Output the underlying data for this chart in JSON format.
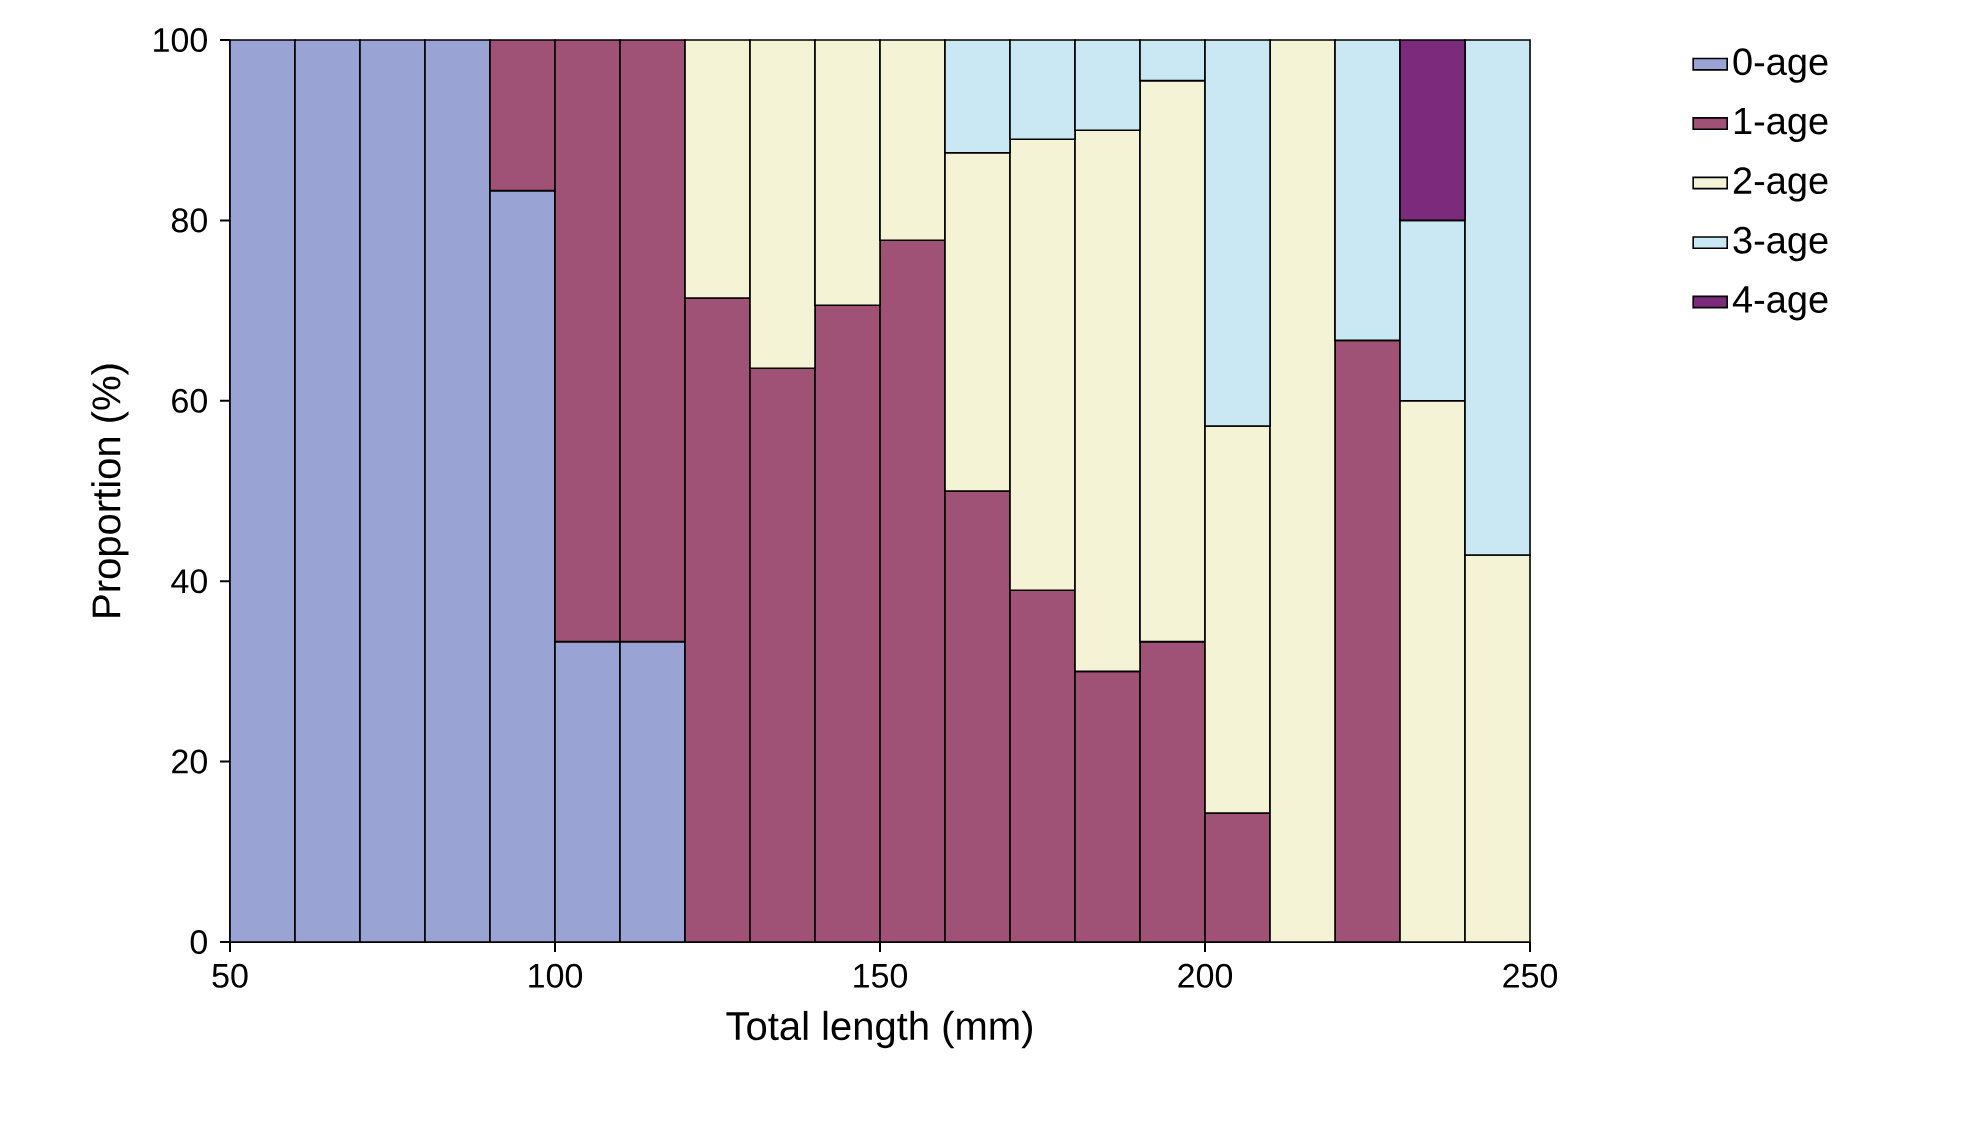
{
  "chart_data": {
    "type": "bar",
    "stacked": true,
    "xlabel": "Total length (mm)",
    "ylabel": "Proportion (%)",
    "x": [
      55,
      65,
      75,
      85,
      95,
      105,
      115,
      125,
      135,
      145,
      155,
      165,
      175,
      185,
      195,
      205,
      215,
      225,
      235,
      245
    ],
    "series": [
      {
        "name": "0-age",
        "color": "#9aa4d4",
        "values": [
          100,
          100,
          100,
          100,
          83.3,
          33.3,
          33.3,
          null,
          null,
          null,
          null,
          null,
          null,
          null,
          null,
          null,
          null,
          null,
          null,
          null
        ]
      },
      {
        "name": "1-age",
        "color": "#a05176",
        "values": [
          null,
          null,
          null,
          null,
          16.7,
          66.7,
          66.7,
          71.4,
          63.6,
          70.6,
          77.8,
          50,
          39,
          30,
          33.3,
          14.3,
          null,
          66.7,
          null,
          null
        ]
      },
      {
        "name": "2-age",
        "color": "#f5f3d5",
        "values": [
          null,
          null,
          null,
          null,
          null,
          null,
          null,
          28.6,
          36.4,
          29.4,
          22.2,
          37.5,
          50,
          60,
          62.2,
          42.9,
          100,
          null,
          60,
          42.9
        ]
      },
      {
        "name": "3-age",
        "color": "#c9e8f3",
        "values": [
          null,
          null,
          null,
          null,
          null,
          null,
          null,
          null,
          null,
          null,
          null,
          12.5,
          11,
          10,
          4.5,
          42.8,
          null,
          33.3,
          20,
          57.1
        ]
      },
      {
        "name": "4-age",
        "color": "#7b2a7c",
        "values": [
          null,
          null,
          null,
          null,
          null,
          null,
          null,
          null,
          null,
          null,
          null,
          null,
          null,
          null,
          null,
          null,
          null,
          null,
          20,
          null
        ]
      }
    ],
    "xlim": [
      50,
      250
    ],
    "xticks": [
      50,
      100,
      150,
      200,
      250
    ],
    "ylim": [
      0,
      100
    ],
    "yticks": [
      0,
      20,
      40,
      60,
      80,
      100
    ],
    "legend": "top right"
  }
}
